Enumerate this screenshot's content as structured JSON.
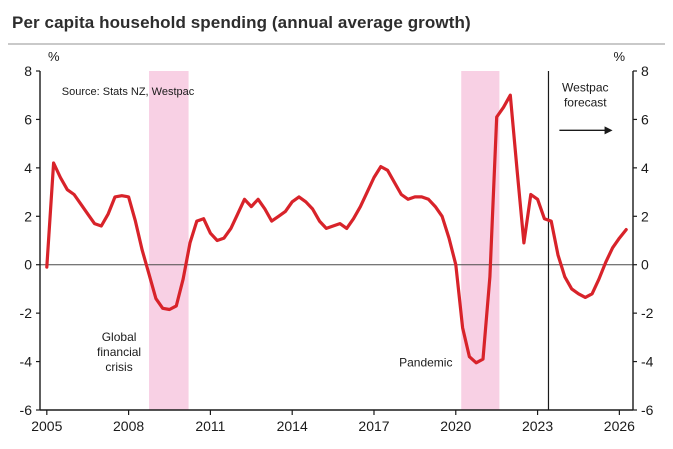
{
  "page": {
    "title": "Per capita household spending (annual average growth)"
  },
  "chart_data": {
    "type": "line",
    "title": "Per capita household spending (annual average growth)",
    "source_note": "Source: Stats NZ, Westpac",
    "ylabel_left": "%",
    "ylabel_right": "%",
    "xlim": [
      2004.75,
      2026.5
    ],
    "ylim": [
      -6,
      8
    ],
    "y_ticks": [
      -6,
      -4,
      -2,
      0,
      2,
      4,
      6,
      8
    ],
    "x_ticks": [
      2005,
      2008,
      2011,
      2014,
      2017,
      2020,
      2023,
      2026
    ],
    "grid": false,
    "legend": "none",
    "colors": {
      "line": "#d8232a",
      "band": "#f8d0e4",
      "axis": "#1a1a1a",
      "zero_line": "#4a4a4a",
      "text": "#1a1a1a"
    },
    "series": [
      {
        "name": "Per capita household spending (annual average growth, %)",
        "x_start": 2005.0,
        "x_step": 0.25,
        "values": [
          -0.1,
          4.2,
          3.6,
          3.1,
          2.9,
          2.5,
          2.1,
          1.7,
          1.6,
          2.1,
          2.8,
          2.85,
          2.8,
          1.8,
          0.6,
          -0.4,
          -1.4,
          -1.8,
          -1.85,
          -1.7,
          -0.6,
          0.9,
          1.8,
          1.9,
          1.3,
          1.0,
          1.1,
          1.5,
          2.1,
          2.7,
          2.4,
          2.7,
          2.3,
          1.8,
          2.0,
          2.2,
          2.6,
          2.8,
          2.6,
          2.3,
          1.8,
          1.5,
          1.6,
          1.7,
          1.5,
          1.9,
          2.4,
          3.0,
          3.6,
          4.05,
          3.9,
          3.4,
          2.9,
          2.7,
          2.8,
          2.8,
          2.7,
          2.4,
          2.0,
          1.1,
          0.0,
          -2.6,
          -3.8,
          -4.05,
          -3.9,
          -0.5,
          6.1,
          6.5,
          7.0,
          3.9,
          0.9,
          2.9,
          2.7,
          1.9,
          1.8,
          0.4,
          -0.5,
          -1.0,
          -1.2,
          -1.35,
          -1.2,
          -0.6,
          0.1,
          0.7,
          1.1,
          1.45
        ]
      }
    ],
    "bands": [
      {
        "label": "Global financial crisis",
        "from": 2008.75,
        "to": 2010.2
      },
      {
        "label": "Pandemic",
        "from": 2020.2,
        "to": 2021.6
      }
    ],
    "forecast_line_x": 2023.4,
    "annotations": [
      {
        "id": "source",
        "lines": [
          "Source: Stats NZ, Westpac"
        ],
        "x": 2005.55,
        "y": 7.0,
        "anchor": "start",
        "font_size": 11
      },
      {
        "id": "gfc-label",
        "lines": [
          "Global",
          "financial",
          "crisis"
        ],
        "x": 2007.65,
        "y": -3.15,
        "anchor": "middle",
        "font_size": 12
      },
      {
        "id": "pandemic-label",
        "lines": [
          "Pandemic"
        ],
        "x": 2018.9,
        "y": -4.2,
        "anchor": "middle",
        "font_size": 12
      },
      {
        "id": "forecast-label",
        "lines": [
          "Westpac",
          "forecast"
        ],
        "x": 2024.75,
        "y": 7.15,
        "anchor": "middle",
        "font_size": 12,
        "arrow": {
          "x1": 2023.8,
          "x2": 2025.75,
          "y": 5.55
        }
      }
    ]
  }
}
